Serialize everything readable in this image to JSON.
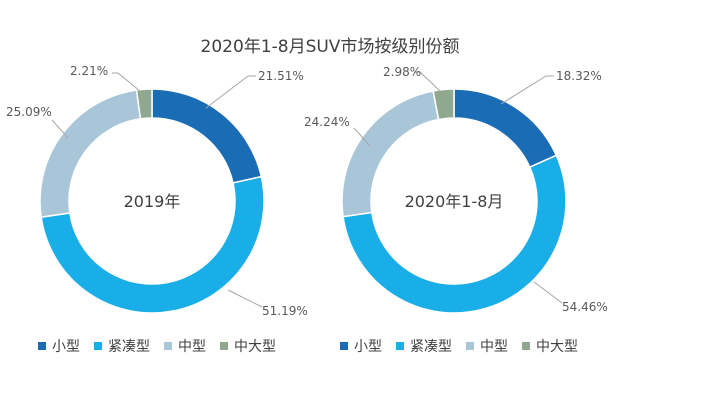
{
  "chart_data": [
    {
      "type": "pie",
      "title": "2020年1-8月SUV市场按级别份额",
      "center_label": "2019年",
      "categories": [
        "小型",
        "紧凑型",
        "中型",
        "中大型"
      ],
      "values": [
        21.51,
        51.19,
        25.09,
        2.21
      ],
      "value_labels": [
        "21.51%",
        "51.19%",
        "25.09%",
        "2.21%"
      ],
      "colors": [
        "#1a6db5",
        "#1aaee8",
        "#a9c6d8",
        "#8fa88f"
      ],
      "legend_position": "bottom"
    },
    {
      "type": "pie",
      "center_label": "2020年1-8月",
      "categories": [
        "小型",
        "紧凑型",
        "中型",
        "中大型"
      ],
      "values": [
        18.32,
        54.46,
        24.24,
        2.98
      ],
      "value_labels": [
        "18.32%",
        "54.46%",
        "24.24%",
        "2.98%"
      ],
      "colors": [
        "#1a6db5",
        "#1aaee8",
        "#a9c6d8",
        "#8fa88f"
      ],
      "legend_position": "bottom"
    }
  ]
}
